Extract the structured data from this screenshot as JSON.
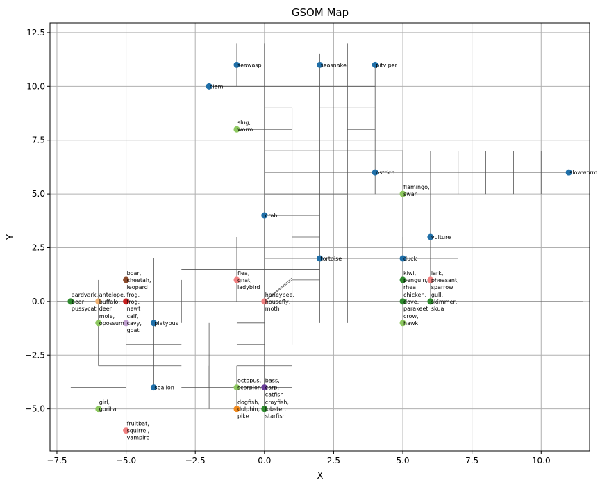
{
  "chart_data": {
    "type": "scatter",
    "title": "GSOM Map",
    "xlabel": "X",
    "ylabel": "Y",
    "xlim": [
      -7.75,
      11.75
    ],
    "ylim": [
      -6.95,
      12.95
    ],
    "xticks": [
      -7.5,
      -5.0,
      -2.5,
      0.0,
      2.5,
      5.0,
      7.5,
      10.0
    ],
    "xtick_labels": [
      "−7.5",
      "−5.0",
      "−2.5",
      "0.0",
      "2.5",
      "5.0",
      "7.5",
      "10.0"
    ],
    "yticks": [
      -5.0,
      -2.5,
      0.0,
      2.5,
      5.0,
      7.5,
      10.0,
      12.5
    ],
    "ytick_labels": [
      "−5.0",
      "−2.5",
      "0.0",
      "2.5",
      "5.0",
      "7.5",
      "10.0",
      "12.5"
    ],
    "grid": true,
    "colors": {
      "blue": "#1f6fa8",
      "lightgreen": "#8dc860",
      "darkgreen": "#2e8b2e",
      "pink": "#f08080",
      "red": "#c81e1e",
      "brown": "#8b4a2b",
      "orange": "#f08a1e",
      "tan": "#f0b070",
      "purple": "#6a3d9a",
      "lavender": "#c0a0d0",
      "connection": "#555555",
      "grid": "#b0b0b0"
    },
    "points": [
      {
        "x": 4,
        "y": 11,
        "label": [
          "pitviper"
        ],
        "color": "blue"
      },
      {
        "x": 2,
        "y": 11,
        "label": [
          "seasnake"
        ],
        "color": "blue"
      },
      {
        "x": -1,
        "y": 11,
        "label": [
          "seawasp"
        ],
        "color": "blue"
      },
      {
        "x": -2,
        "y": 10,
        "label": [
          "clam"
        ],
        "color": "blue"
      },
      {
        "x": -1,
        "y": 8,
        "label": [
          "slug,",
          "worm"
        ],
        "color": "lightgreen"
      },
      {
        "x": 4,
        "y": 6,
        "label": [
          "ostrich"
        ],
        "color": "blue"
      },
      {
        "x": 11,
        "y": 6,
        "label": [
          "slowworm"
        ],
        "color": "blue"
      },
      {
        "x": 5,
        "y": 5,
        "label": [
          "flamingo,",
          "swan"
        ],
        "color": "lightgreen"
      },
      {
        "x": 0,
        "y": 4,
        "label": [
          "crab"
        ],
        "color": "blue"
      },
      {
        "x": 6,
        "y": 3,
        "label": [
          "vulture"
        ],
        "color": "blue"
      },
      {
        "x": 2,
        "y": 2,
        "label": [
          "tortoise"
        ],
        "color": "blue"
      },
      {
        "x": 5,
        "y": 2,
        "label": [
          "duck"
        ],
        "color": "blue"
      },
      {
        "x": -5,
        "y": 1,
        "label": [
          "boar,",
          "cheetah,",
          "leopard"
        ],
        "color": "brown"
      },
      {
        "x": -1,
        "y": 1,
        "label": [
          "flea,",
          "gnat,",
          "ladybird"
        ],
        "color": "pink"
      },
      {
        "x": 5,
        "y": 1,
        "label": [
          "kiwi,",
          "penguin,",
          "rhea"
        ],
        "color": "darkgreen"
      },
      {
        "x": 6,
        "y": 1,
        "label": [
          "lark,",
          "pheasant,",
          "sparrow"
        ],
        "color": "pink"
      },
      {
        "x": -7,
        "y": 0,
        "label": [
          "aardvark,",
          "bear,",
          "pussycat"
        ],
        "color": "darkgreen"
      },
      {
        "x": -6,
        "y": 0,
        "label": [
          "antelope,",
          "buffalo,",
          "deer"
        ],
        "color": "tan"
      },
      {
        "x": -5,
        "y": 0,
        "label": [
          "frog,",
          "frog,",
          "newt"
        ],
        "color": "red"
      },
      {
        "x": 0,
        "y": 0,
        "label": [
          "honeybee,",
          "housefly,",
          "moth"
        ],
        "color": "pink"
      },
      {
        "x": 5,
        "y": 0,
        "label": [
          "chicken,",
          "dove,",
          "parakeet"
        ],
        "color": "darkgreen"
      },
      {
        "x": 6,
        "y": 0,
        "label": [
          "gull,",
          "skimmer,",
          "skua"
        ],
        "color": "darkgreen"
      },
      {
        "x": -6,
        "y": -1,
        "label": [
          "mole,",
          "opossum"
        ],
        "color": "lightgreen"
      },
      {
        "x": -5,
        "y": -1,
        "label": [
          "calf,",
          "cavy,",
          "goat"
        ],
        "color": "lavender"
      },
      {
        "x": -4,
        "y": -1,
        "label": [
          "platypus"
        ],
        "color": "blue"
      },
      {
        "x": 5,
        "y": -1,
        "label": [
          "crow,",
          "hawk"
        ],
        "color": "lightgreen"
      },
      {
        "x": -4,
        "y": -4,
        "label": [
          "sealion"
        ],
        "color": "blue"
      },
      {
        "x": -1,
        "y": -4,
        "label": [
          "octopus,",
          "scorpion"
        ],
        "color": "lightgreen"
      },
      {
        "x": 0,
        "y": -4,
        "label": [
          "bass,",
          "carp,",
          "catfish"
        ],
        "color": "purple"
      },
      {
        "x": -6,
        "y": -5,
        "label": [
          "girl,",
          "gorilla"
        ],
        "color": "lightgreen"
      },
      {
        "x": -1,
        "y": -5,
        "label": [
          "dogfish,",
          "dolphin,",
          "pike"
        ],
        "color": "orange"
      },
      {
        "x": 0,
        "y": -5,
        "label": [
          "crayfish,",
          "lobster,",
          "starfish"
        ],
        "color": "darkgreen"
      },
      {
        "x": -5,
        "y": -6,
        "label": [
          "fruitbat,",
          "squirrel,",
          "vampire"
        ],
        "color": "pink"
      }
    ],
    "connections": [
      [
        [
          -7.5,
          0
        ],
        [
          11.5,
          0
        ]
      ],
      [
        [
          0,
          0
        ],
        [
          1,
          1
        ]
      ],
      [
        [
          0,
          0
        ],
        [
          1,
          1.1
        ]
      ],
      [
        [
          -7,
          -4
        ],
        [
          -5,
          -4
        ]
      ],
      [
        [
          -6,
          -3
        ],
        [
          -3,
          -3
        ]
      ],
      [
        [
          -5,
          -2
        ],
        [
          -3,
          -2
        ]
      ],
      [
        [
          -3,
          -4
        ],
        [
          1,
          -4
        ]
      ],
      [
        [
          -1,
          -3
        ],
        [
          1,
          -3
        ]
      ],
      [
        [
          -1,
          -2
        ],
        [
          0,
          -2
        ]
      ],
      [
        [
          -1,
          -1
        ],
        [
          0,
          -1
        ]
      ],
      [
        [
          -3,
          1.5
        ],
        [
          2,
          1.5
        ]
      ],
      [
        [
          0,
          2
        ],
        [
          7,
          2
        ]
      ],
      [
        [
          1,
          3
        ],
        [
          2,
          3
        ]
      ],
      [
        [
          0,
          4
        ],
        [
          2,
          4
        ]
      ],
      [
        [
          0,
          5
        ],
        [
          3,
          5
        ]
      ],
      [
        [
          0,
          6
        ],
        [
          11,
          6
        ]
      ],
      [
        [
          0,
          7
        ],
        [
          5,
          7
        ]
      ],
      [
        [
          -1,
          8
        ],
        [
          1,
          8
        ]
      ],
      [
        [
          3,
          8
        ],
        [
          4,
          8
        ]
      ],
      [
        [
          0,
          9
        ],
        [
          1,
          9
        ]
      ],
      [
        [
          2,
          9
        ],
        [
          4,
          9
        ]
      ],
      [
        [
          -2,
          10
        ],
        [
          4,
          10
        ]
      ],
      [
        [
          -1,
          11
        ],
        [
          0,
          11
        ]
      ],
      [
        [
          1,
          11
        ],
        [
          5,
          11
        ]
      ],
      [
        [
          1,
          1
        ],
        [
          2,
          1
        ]
      ],
      [
        [
          -5,
          -6
        ],
        [
          -5,
          1
        ]
      ],
      [
        [
          -4,
          -4
        ],
        [
          -4,
          2
        ]
      ],
      [
        [
          -6,
          -1
        ],
        [
          -6,
          1
        ]
      ],
      [
        [
          -3,
          -1
        ],
        [
          -3,
          1
        ]
      ],
      [
        [
          -2,
          -4
        ],
        [
          -2,
          -1
        ]
      ],
      [
        [
          -2,
          -5
        ],
        [
          -2,
          -3
        ]
      ],
      [
        [
          -1,
          11
        ],
        [
          -1,
          12
        ]
      ],
      [
        [
          -1,
          10
        ],
        [
          -1,
          11
        ]
      ],
      [
        [
          -1,
          0
        ],
        [
          -1,
          3
        ]
      ],
      [
        [
          0,
          -5
        ],
        [
          0,
          12
        ]
      ],
      [
        [
          1,
          -2
        ],
        [
          1,
          9
        ]
      ],
      [
        [
          2,
          -1
        ],
        [
          2,
          11.5
        ]
      ],
      [
        [
          3,
          -1
        ],
        [
          3,
          12
        ]
      ],
      [
        [
          4,
          5
        ],
        [
          4,
          11
        ]
      ],
      [
        [
          5,
          -1
        ],
        [
          5,
          7
        ]
      ],
      [
        [
          6,
          1
        ],
        [
          6,
          7
        ]
      ],
      [
        [
          7,
          5
        ],
        [
          7,
          7
        ]
      ],
      [
        [
          8,
          5
        ],
        [
          8,
          7
        ]
      ],
      [
        [
          9,
          5
        ],
        [
          9,
          7
        ]
      ],
      [
        [
          10,
          5
        ],
        [
          10,
          7
        ]
      ],
      [
        [
          -6,
          -3
        ],
        [
          -6,
          -1
        ]
      ],
      [
        [
          -1,
          -5
        ],
        [
          -1,
          -3
        ]
      ],
      [
        [
          0,
          -5
        ],
        [
          0,
          -3
        ]
      ],
      [
        [
          5,
          1
        ],
        [
          5,
          3
        ]
      ],
      [
        [
          6,
          0
        ],
        [
          6,
          1
        ]
      ]
    ],
    "legend": null
  }
}
